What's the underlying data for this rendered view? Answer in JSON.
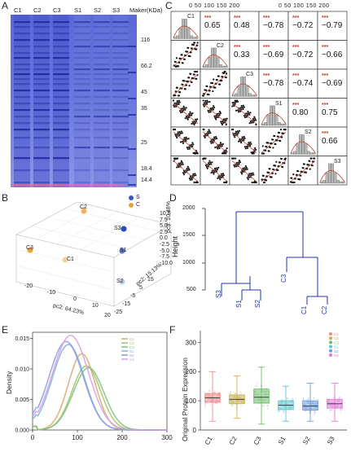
{
  "panels": {
    "a": "A",
    "b": "B",
    "c": "C",
    "d": "D",
    "e": "E",
    "f": "F"
  },
  "gel": {
    "lanes": [
      "C1",
      "C2",
      "C3",
      "S1",
      "S2",
      "S3"
    ],
    "marker_header": "Maker(KDa)",
    "markers": [
      "116",
      "66.2",
      "45",
      "35",
      "25",
      "18.4",
      "14.4"
    ]
  },
  "pca": {
    "legend": [
      {
        "label": "S",
        "color": "#3b57c4"
      },
      {
        "label": "C",
        "color": "#e8a33a"
      }
    ],
    "points": [
      "C2",
      "S3",
      "C3",
      "S1",
      "C1",
      "S2"
    ],
    "xlabel": "pc2: 64.23%",
    "ylabel": "pc2: 15.13%",
    "zlabel": "pc3: 10.48%",
    "x_ticks": [
      "-20",
      "-10",
      "0",
      "10",
      "20"
    ],
    "y_ticks": [
      "-25",
      "-20",
      "-15",
      "-10",
      "-5",
      "0",
      "5",
      "10",
      "15"
    ],
    "z_ticks": [
      "10.0",
      "7.5",
      "5.0",
      "2.5",
      "0.0",
      "-2.5",
      "-5.0",
      "-7.5",
      "-10.0"
    ]
  },
  "corr": {
    "diag_labels": [
      "C1",
      "C2",
      "C3",
      "S1",
      "S2",
      "S3"
    ],
    "top_ticks": "0 50 100 150 200",
    "cells": [
      {
        "row": 0,
        "col": 1,
        "stars": "***",
        "value": "0.65"
      },
      {
        "row": 0,
        "col": 2,
        "stars": "***",
        "value": "0.48"
      },
      {
        "row": 0,
        "col": 3,
        "stars": "***",
        "value": "−0.78"
      },
      {
        "row": 0,
        "col": 4,
        "stars": "***",
        "value": "−0.72"
      },
      {
        "row": 0,
        "col": 5,
        "stars": "***",
        "value": "−0.79"
      },
      {
        "row": 1,
        "col": 2,
        "stars": "***",
        "value": "0.33"
      },
      {
        "row": 1,
        "col": 3,
        "stars": "***",
        "value": "−0.69"
      },
      {
        "row": 1,
        "col": 4,
        "stars": "***",
        "value": "−0.72"
      },
      {
        "row": 1,
        "col": 5,
        "stars": "***",
        "value": "−0.66"
      },
      {
        "row": 2,
        "col": 3,
        "stars": "***",
        "value": "−0.78"
      },
      {
        "row": 2,
        "col": 4,
        "stars": "***",
        "value": "−0.74"
      },
      {
        "row": 2,
        "col": 5,
        "stars": "***",
        "value": "−0.69"
      },
      {
        "row": 3,
        "col": 4,
        "stars": "***",
        "value": "0.80"
      },
      {
        "row": 3,
        "col": 5,
        "stars": "***",
        "value": "0.75"
      },
      {
        "row": 4,
        "col": 5,
        "stars": "***",
        "value": "0.66"
      }
    ]
  },
  "dendro": {
    "ylabel": "Height",
    "y_ticks": [
      "2000",
      "1500",
      "1000",
      "500"
    ],
    "leaves": [
      "S3",
      "S1",
      "S2",
      "C3",
      "C1",
      "C2"
    ]
  },
  "chart_data": [
    {
      "type": "line",
      "panel": "E",
      "ylabel": "Density",
      "xlim": [
        0,
        300
      ],
      "ylim": [
        0,
        0.016
      ],
      "x_ticks": [
        "0",
        "100",
        "200",
        "300"
      ],
      "y_ticks": [
        "0.000",
        "0.005",
        "0.010",
        "0.015"
      ],
      "series": [
        {
          "name": "C1",
          "color": "#d9a86c",
          "peak_x": 110,
          "peak_y": 0.0125
        },
        {
          "name": "C2",
          "color": "#a8c06a",
          "peak_x": 120,
          "peak_y": 0.0105
        },
        {
          "name": "C3",
          "color": "#7cc27e",
          "peak_x": 125,
          "peak_y": 0.0102
        },
        {
          "name": "S1",
          "color": "#7fb2d8",
          "peak_x": 80,
          "peak_y": 0.014
        },
        {
          "name": "S2",
          "color": "#8d9be0",
          "peak_x": 75,
          "peak_y": 0.0145
        },
        {
          "name": "S3",
          "color": "#d79ee0",
          "peak_x": 85,
          "peak_y": 0.0155
        }
      ]
    },
    {
      "type": "box",
      "panel": "F",
      "ylabel": "Original Protein Expression",
      "ylim": [
        0,
        340
      ],
      "y_ticks": [
        "0",
        "100",
        "200",
        "300"
      ],
      "categories": [
        "C1",
        "C2",
        "C3",
        "S1",
        "S2",
        "S3"
      ],
      "series": [
        {
          "name": "C1",
          "color": "#ef8a8a",
          "whisker_low": 30,
          "q1": 95,
          "median": 110,
          "q3": 125,
          "whisker_high": 200
        },
        {
          "name": "C2",
          "color": "#c9b04a",
          "whisker_low": 40,
          "q1": 90,
          "median": 105,
          "q3": 120,
          "whisker_high": 185
        },
        {
          "name": "C3",
          "color": "#6fbd6c",
          "whisker_low": 20,
          "q1": 92,
          "median": 112,
          "q3": 140,
          "whisker_high": 215
        },
        {
          "name": "S1",
          "color": "#5ec7d1",
          "whisker_low": 30,
          "q1": 70,
          "median": 85,
          "q3": 100,
          "whisker_high": 150
        },
        {
          "name": "S2",
          "color": "#6c9be0",
          "whisker_low": 30,
          "q1": 68,
          "median": 82,
          "q3": 100,
          "whisker_high": 160
        },
        {
          "name": "S3",
          "color": "#e17ad6",
          "whisker_low": 30,
          "q1": 75,
          "median": 90,
          "q3": 105,
          "whisker_high": 160
        }
      ]
    }
  ]
}
